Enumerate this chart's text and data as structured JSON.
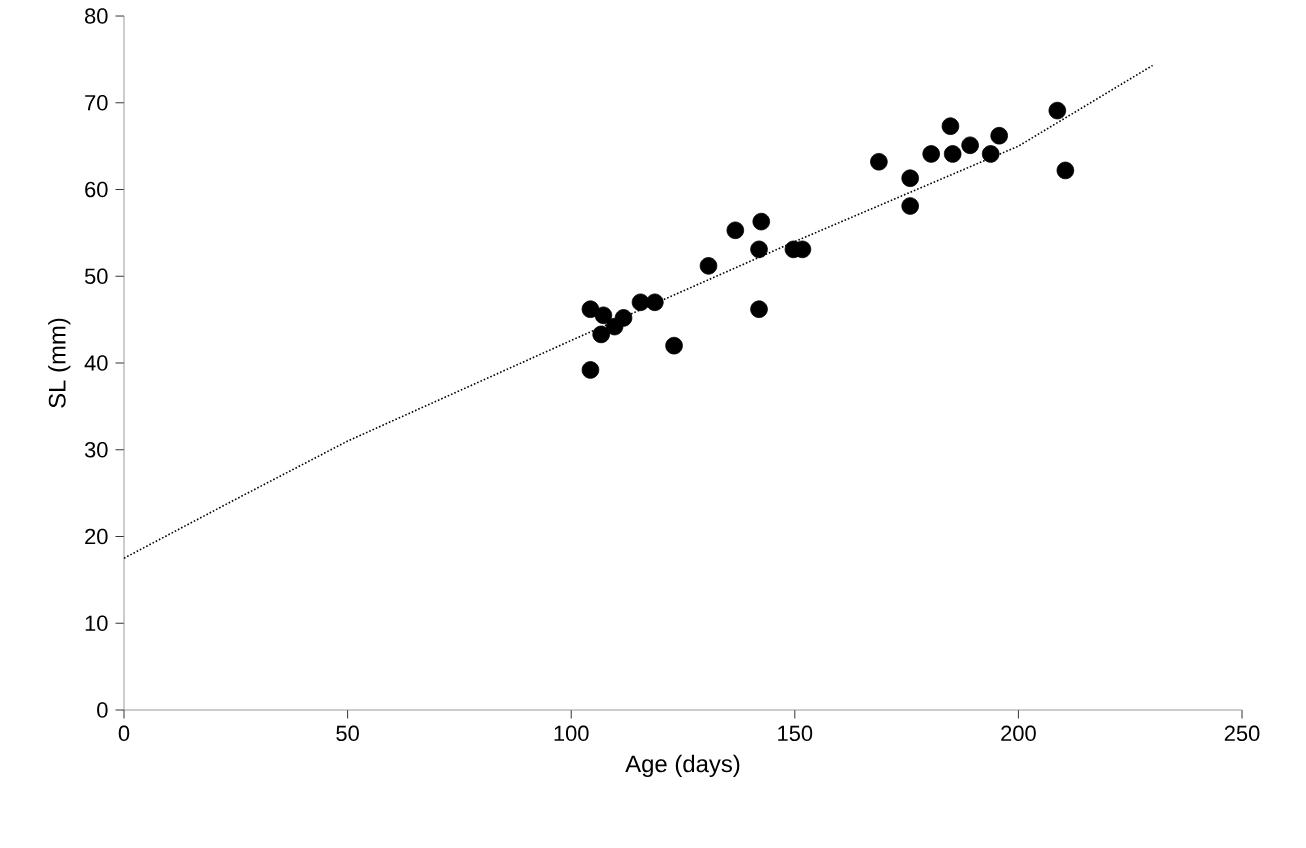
{
  "chart_data": {
    "type": "scatter",
    "xlabel": "Age (days)",
    "ylabel": "SL (mm)",
    "xlim": [
      0,
      250
    ],
    "ylim": [
      0,
      80
    ],
    "xticks": [
      0,
      50,
      100,
      150,
      200,
      250
    ],
    "yticks": [
      0,
      10,
      20,
      30,
      40,
      50,
      60,
      70,
      80
    ],
    "grid": false,
    "series": [
      {
        "color": "#000000",
        "marker": "circle",
        "x": [
          104.3,
          104.3,
          107.2,
          106.7,
          109.7,
          111.7,
          115.5,
          118.7,
          123,
          130.7,
          136.7,
          142.5,
          142,
          142,
          149.7,
          151.7,
          168.8,
          175.8,
          175.8,
          180.5,
          184.8,
          185.3,
          189.2,
          193.8,
          195.7,
          208.7,
          210.5
        ],
        "values": [
          46.2,
          39.2,
          45.5,
          43.3,
          44.2,
          45.2,
          47.0,
          47.0,
          42.0,
          51.2,
          55.3,
          56.3,
          53.1,
          46.2,
          53.1,
          53.1,
          63.2,
          61.3,
          58.1,
          64.1,
          67.3,
          64.1,
          65.1,
          64.1,
          66.2,
          69.1,
          62.2
        ]
      },
      {
        "type": "line",
        "color": "#000000",
        "line_style": "dotted",
        "marker": "none",
        "x": [
          0,
          25,
          50,
          100,
          150,
          200,
          230
        ],
        "values": [
          17.5,
          24.3,
          31,
          42.6,
          54,
          65,
          74.3
        ]
      }
    ]
  }
}
